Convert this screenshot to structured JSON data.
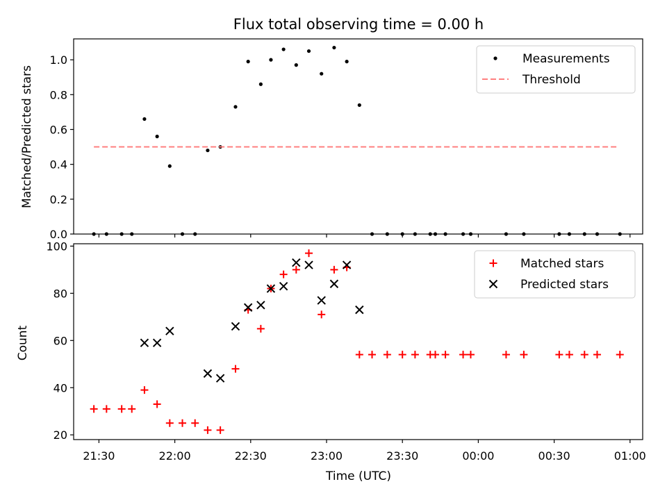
{
  "chart_data": [
    {
      "type": "scatter",
      "title": "Flux total observing time = 0.00 h",
      "xlabel": "",
      "ylabel": "Matched/Predicted stars",
      "xlim": [
        "21:20",
        "01:05"
      ],
      "ylim": [
        0,
        1.12
      ],
      "yticks": [
        "0.0",
        "0.2",
        "0.4",
        "0.6",
        "0.8",
        "1.0"
      ],
      "legend_position": "top-right",
      "grid": false,
      "series": [
        {
          "name": "Measurements",
          "marker": "dot",
          "color": "#000000",
          "points": [
            [
              "21:28",
              0.0
            ],
            [
              "21:33",
              0.0
            ],
            [
              "21:39",
              0.0
            ],
            [
              "21:43",
              0.0
            ],
            [
              "21:48",
              0.66
            ],
            [
              "21:53",
              0.56
            ],
            [
              "21:58",
              0.39
            ],
            [
              "22:03",
              0.0
            ],
            [
              "22:08",
              0.0
            ],
            [
              "22:13",
              0.48
            ],
            [
              "22:18",
              0.5
            ],
            [
              "22:24",
              0.73
            ],
            [
              "22:29",
              0.99
            ],
            [
              "22:34",
              0.86
            ],
            [
              "22:38",
              1.0
            ],
            [
              "22:43",
              1.06
            ],
            [
              "22:48",
              0.97
            ],
            [
              "22:53",
              1.05
            ],
            [
              "22:58",
              0.92
            ],
            [
              "23:03",
              1.07
            ],
            [
              "23:08",
              0.99
            ],
            [
              "23:13",
              0.74
            ],
            [
              "23:18",
              0.0
            ],
            [
              "23:24",
              0.0
            ],
            [
              "23:30",
              0.0
            ],
            [
              "23:35",
              0.0
            ],
            [
              "23:41",
              0.0
            ],
            [
              "23:43",
              0.0
            ],
            [
              "23:47",
              0.0
            ],
            [
              "23:54",
              0.0
            ],
            [
              "23:57",
              0.0
            ],
            [
              "00:11",
              0.0
            ],
            [
              "00:18",
              0.0
            ],
            [
              "00:32",
              0.0
            ],
            [
              "00:36",
              0.0
            ],
            [
              "00:42",
              0.0
            ],
            [
              "00:47",
              0.0
            ],
            [
              "00:56",
              0.0
            ]
          ]
        },
        {
          "name": "Threshold",
          "style": "dashed-line",
          "color": "#ff7f7f",
          "points": [
            [
              "21:28",
              0.5
            ],
            [
              "00:55",
              0.5
            ]
          ]
        }
      ]
    },
    {
      "type": "scatter",
      "xlabel": "Time (UTC)",
      "ylabel": "Count",
      "xlim": [
        "21:20",
        "01:05"
      ],
      "ylim": [
        18,
        101
      ],
      "yticks": [
        "20",
        "40",
        "60",
        "80",
        "100"
      ],
      "xticks": [
        "21:30",
        "22:00",
        "22:30",
        "23:00",
        "23:30",
        "00:00",
        "00:30",
        "01:00"
      ],
      "legend_position": "top-right",
      "grid": false,
      "series": [
        {
          "name": "Matched stars",
          "marker": "plus",
          "color": "#ff0000",
          "points": [
            [
              "21:28",
              31
            ],
            [
              "21:33",
              31
            ],
            [
              "21:39",
              31
            ],
            [
              "21:43",
              31
            ],
            [
              "21:48",
              39
            ],
            [
              "21:53",
              33
            ],
            [
              "21:58",
              25
            ],
            [
              "22:03",
              25
            ],
            [
              "22:08",
              25
            ],
            [
              "22:13",
              22
            ],
            [
              "22:18",
              22
            ],
            [
              "22:24",
              48
            ],
            [
              "22:29",
              73
            ],
            [
              "22:34",
              65
            ],
            [
              "22:38",
              82
            ],
            [
              "22:43",
              88
            ],
            [
              "22:48",
              90
            ],
            [
              "22:53",
              97
            ],
            [
              "22:58",
              71
            ],
            [
              "23:03",
              90
            ],
            [
              "23:08",
              91
            ],
            [
              "23:13",
              54
            ],
            [
              "23:18",
              54
            ],
            [
              "23:24",
              54
            ],
            [
              "23:30",
              54
            ],
            [
              "23:35",
              54
            ],
            [
              "23:41",
              54
            ],
            [
              "23:43",
              54
            ],
            [
              "23:47",
              54
            ],
            [
              "23:54",
              54
            ],
            [
              "23:57",
              54
            ],
            [
              "00:11",
              54
            ],
            [
              "00:18",
              54
            ],
            [
              "00:32",
              54
            ],
            [
              "00:36",
              54
            ],
            [
              "00:42",
              54
            ],
            [
              "00:47",
              54
            ],
            [
              "00:56",
              54
            ]
          ]
        },
        {
          "name": "Predicted stars",
          "marker": "x",
          "color": "#000000",
          "points": [
            [
              "21:48",
              59
            ],
            [
              "21:53",
              59
            ],
            [
              "21:58",
              64
            ],
            [
              "22:13",
              46
            ],
            [
              "22:18",
              44
            ],
            [
              "22:24",
              66
            ],
            [
              "22:29",
              74
            ],
            [
              "22:34",
              75
            ],
            [
              "22:38",
              82
            ],
            [
              "22:43",
              83
            ],
            [
              "22:48",
              93
            ],
            [
              "22:53",
              92
            ],
            [
              "22:58",
              77
            ],
            [
              "23:03",
              84
            ],
            [
              "23:08",
              92
            ],
            [
              "23:13",
              73
            ]
          ]
        }
      ]
    }
  ]
}
